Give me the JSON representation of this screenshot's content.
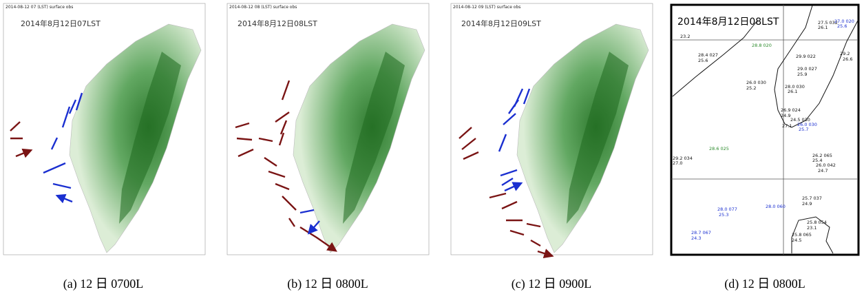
{
  "panels": [
    {
      "header": "2014-08-12 07 (LST) surface obs",
      "title": "2014年8月12日07LST",
      "caption": "(a) 12 日 0700L"
    },
    {
      "header": "2014-08-12 08 (LST) surface obs",
      "title": "2014年8月12日08LST",
      "caption": "(b) 12 日 0800L"
    },
    {
      "header": "2014-08-12 09 (LST) surface obs",
      "title": "2014年8月12日09LST",
      "caption": "(c) 12 日 0900L"
    },
    {
      "title": "2014年8月12日08LST",
      "caption": "(d) 12 日 0800L",
      "stations": [
        {
          "label": "27.5 032",
          "color": "#111"
        },
        {
          "label": "26.1",
          "color": "#111"
        },
        {
          "label": "27.0 020",
          "color": "#1a2fd0"
        },
        {
          "label": "25.6",
          "color": "#1a2fd0"
        },
        {
          "label": "23.2",
          "color": "#111"
        },
        {
          "label": "29.9 022",
          "color": "#111"
        },
        {
          "label": "28.4 027",
          "color": "#111"
        },
        {
          "label": "25.6",
          "color": "#111"
        },
        {
          "label": "28.8 020",
          "color": "#2a8a2a"
        },
        {
          "label": "29.0 027",
          "color": "#111"
        },
        {
          "label": "25.9",
          "color": "#111"
        },
        {
          "label": "29.2",
          "color": "#111"
        },
        {
          "label": "26.6",
          "color": "#111"
        },
        {
          "label": "26.0 030",
          "color": "#111"
        },
        {
          "label": "25.2",
          "color": "#111"
        },
        {
          "label": "28.0 030",
          "color": "#111"
        },
        {
          "label": "26.1",
          "color": "#111"
        },
        {
          "label": "26.9 024",
          "color": "#111"
        },
        {
          "label": "24.9",
          "color": "#111"
        },
        {
          "label": "24.5 030",
          "color": "#111"
        },
        {
          "label": "27.1",
          "color": "#111"
        },
        {
          "label": "26.0 030",
          "color": "#1a2fd0"
        },
        {
          "label": "25.7",
          "color": "#1a2fd0"
        },
        {
          "label": "29.2 034",
          "color": "#111"
        },
        {
          "label": "27.0",
          "color": "#111"
        },
        {
          "label": "28.6 025",
          "color": "#2a8a2a"
        },
        {
          "label": "26.2 065",
          "color": "#111"
        },
        {
          "label": "25.4",
          "color": "#111"
        },
        {
          "label": "26.0 042",
          "color": "#111"
        },
        {
          "label": "24.7",
          "color": "#111"
        },
        {
          "label": "25.7 037",
          "color": "#111"
        },
        {
          "label": "24.9",
          "color": "#111"
        },
        {
          "label": "28.0 077",
          "color": "#1a2fd0"
        },
        {
          "label": "25.3",
          "color": "#1a2fd0"
        },
        {
          "label": "28.0 060",
          "color": "#1a2fd0"
        },
        {
          "label": "25.8 054",
          "color": "#111"
        },
        {
          "label": "23.1",
          "color": "#111"
        },
        {
          "label": "25.8 065",
          "color": "#111"
        },
        {
          "label": "24.5",
          "color": "#111"
        },
        {
          "label": "28.7 067",
          "color": "#1a2fd0"
        },
        {
          "label": "24.3",
          "color": "#1a2fd0"
        }
      ]
    }
  ]
}
